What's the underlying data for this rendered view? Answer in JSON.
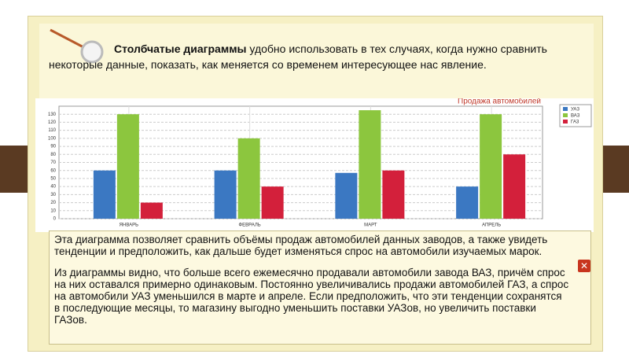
{
  "intro": {
    "bold": "Столбчатые диаграммы",
    "text": " удобно использовать в тех случаях, когда нужно сравнить некоторые данные, показать, как меняется со временем интересующее нас явление."
  },
  "chart_data": {
    "type": "bar",
    "title": "Продажа автомобилей",
    "categories": [
      "ЯНВАРЬ",
      "ФЕВРАЛЬ",
      "МАРТ",
      "АПРЕЛЬ"
    ],
    "series": [
      {
        "name": "УАЗ",
        "color": "#3b78c2",
        "values": [
          60,
          60,
          57,
          40
        ]
      },
      {
        "name": "ВАЗ",
        "color": "#8cc63e",
        "values": [
          130,
          100,
          135,
          130
        ]
      },
      {
        "name": "ГАЗ",
        "color": "#d3203b",
        "values": [
          20,
          40,
          60,
          80
        ]
      }
    ],
    "ylim": [
      0,
      140
    ],
    "yticks": [
      0,
      10,
      20,
      30,
      40,
      50,
      60,
      70,
      80,
      90,
      100,
      110,
      120,
      130
    ],
    "grid": true,
    "legend": "right"
  },
  "paragraphs": [
    "Эта диаграмма позволяет сравнить объёмы продаж автомобилей данных заводов, а также увидеть тенденции и предположить, как дальше будет изменяться спрос на автомобили изучаемых марок.",
    "Из диаграммы видно, что больше всего ежемесячно продавали автомобили завода ВАЗ, причём спрос на них оставался примерно одинаковым. Постоянно увеличивались продажи автомобилей ГАЗ, а спрос на автомобили УАЗ уменьшился в марте и апреле. Если предположить, что эти тенденции сохранятся в последующие месяцы, то магазину выгодно уменьшить поставки УАЗов, но увеличить поставки ГАЗов."
  ]
}
